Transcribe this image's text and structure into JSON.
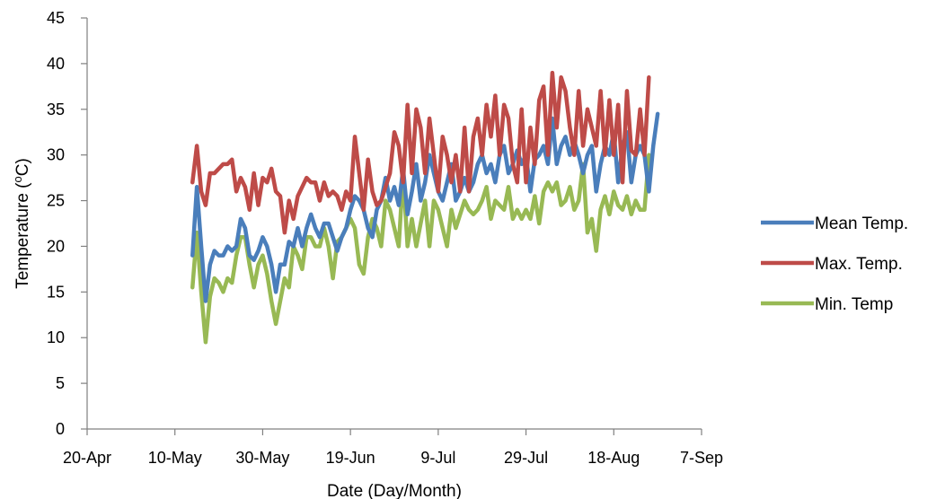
{
  "chart_data": {
    "type": "line",
    "title": "",
    "xlabel": "Date (Day/Month)",
    "ylabel": "Temperature (",
    "ylabel_sup": "o",
    "ylabel_end": "C)",
    "ylim": [
      0,
      45
    ],
    "y_ticks": [
      0,
      5,
      10,
      15,
      20,
      25,
      30,
      35,
      40,
      45
    ],
    "x_ticks": [
      "20-Apr",
      "10-May",
      "30-May",
      "19-Jun",
      "9-Jul",
      "29-Jul",
      "18-Aug",
      "7-Sep"
    ],
    "x_tick_days": [
      0,
      20,
      40,
      60,
      80,
      100,
      120,
      140
    ],
    "x_start_date": "20-Apr",
    "grid": false,
    "legend": "right",
    "series": [
      {
        "name": "Mean Temp.",
        "color": "#4a7ebb",
        "values": [
          19,
          26.5,
          20,
          14,
          18,
          19.5,
          19,
          19,
          20,
          19.5,
          20,
          23,
          22,
          19,
          18.5,
          19.5,
          21,
          20,
          18,
          15,
          18,
          18,
          20.5,
          20,
          22,
          20,
          22,
          23.5,
          22,
          21,
          22.5,
          22.5,
          21,
          19.5,
          21,
          22,
          24,
          25.5,
          25,
          24,
          22,
          21,
          24,
          25,
          27.5,
          25,
          26.5,
          24.5,
          28.5,
          23.5,
          26,
          29,
          25,
          27,
          30,
          28,
          26,
          25,
          27,
          29,
          25,
          26,
          27.5,
          26,
          27,
          29,
          30,
          28,
          29,
          27,
          30,
          31,
          28,
          29,
          30.5,
          29,
          30,
          26,
          29.5,
          30,
          31,
          29,
          34,
          29,
          31,
          32,
          30,
          31.5,
          30,
          28,
          30,
          31,
          26,
          29,
          31,
          30,
          32.5,
          27,
          31,
          32.5,
          27,
          30,
          31,
          30,
          26,
          31,
          34.5
        ]
      },
      {
        "name": "Max. Temp.",
        "color": "#be4b48",
        "values": [
          27,
          31,
          26,
          24.5,
          28,
          28,
          28.5,
          29,
          29,
          29.5,
          26,
          27.5,
          26.5,
          24,
          28,
          24.5,
          27.5,
          27,
          28.5,
          26,
          25.5,
          21.5,
          25,
          23,
          25.5,
          26.5,
          27.5,
          27,
          27,
          25,
          27,
          25.5,
          26,
          25.5,
          24,
          26,
          25,
          32,
          28,
          24,
          29.5,
          26,
          24.5,
          25,
          26.5,
          28,
          32.5,
          31,
          27,
          35.5,
          28,
          35,
          33,
          28,
          34,
          30,
          26,
          32,
          30,
          27,
          30,
          26,
          33,
          26,
          32,
          34,
          30,
          35.5,
          32,
          36.5,
          30,
          35.5,
          34,
          29,
          27,
          35,
          27,
          33,
          29,
          36,
          37.5,
          30,
          39,
          33,
          38.5,
          37,
          33,
          30,
          37,
          31,
          35,
          33,
          31,
          37,
          30,
          36,
          30,
          35.5,
          27,
          37,
          30.5,
          30,
          35,
          30,
          38.5
        ]
      },
      {
        "name": "Min. Temp",
        "color": "#98b954",
        "values": [
          15.5,
          21.5,
          15,
          9.5,
          14.5,
          16.5,
          16,
          15,
          16.5,
          16,
          19,
          21,
          21,
          18,
          15.5,
          18,
          19,
          17,
          14,
          11.5,
          14,
          16.5,
          15.5,
          20,
          19,
          17.5,
          21,
          21,
          20,
          20,
          22,
          20,
          16.5,
          20.5,
          21,
          22,
          23,
          22,
          18,
          17,
          21,
          23,
          22,
          20,
          25,
          24,
          22,
          20,
          28,
          20,
          23,
          20,
          22.5,
          25,
          20,
          25,
          24,
          22,
          20,
          24,
          22,
          23.5,
          25,
          24,
          23.5,
          24,
          25,
          26.5,
          23,
          25,
          24.5,
          24,
          26.5,
          23,
          24,
          23,
          24,
          23,
          25.5,
          22.5,
          26,
          27,
          26,
          27,
          24.5,
          25,
          26.5,
          24,
          25,
          29,
          21.5,
          23,
          19.5,
          24,
          25.5,
          23.5,
          26,
          24.5,
          24,
          25.5,
          23.5,
          25,
          24,
          24,
          30
        ]
      }
    ]
  }
}
